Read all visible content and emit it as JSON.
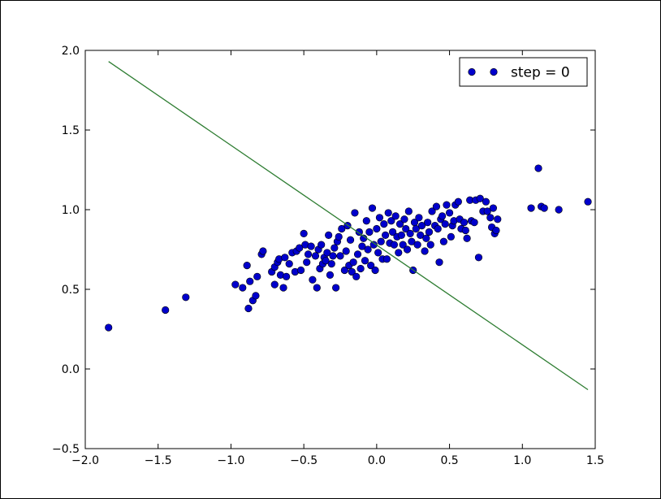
{
  "chart_data": {
    "type": "scatter",
    "title": "",
    "xlabel": "",
    "ylabel": "",
    "xlim": [
      -2.0,
      1.5
    ],
    "ylim": [
      -0.5,
      2.0
    ],
    "x_ticks": [
      -2.0,
      -1.5,
      -1.0,
      -0.5,
      0.0,
      0.5,
      1.0,
      1.5
    ],
    "x_tick_labels": [
      "−2.0",
      "−1.5",
      "−1.0",
      "−0.5",
      "0.0",
      "0.5",
      "1.0",
      "1.5"
    ],
    "y_ticks": [
      -0.5,
      0.0,
      0.5,
      1.0,
      1.5,
      2.0
    ],
    "y_tick_labels": [
      "−0.5",
      "0.0",
      "0.5",
      "1.0",
      "1.5",
      "2.0"
    ],
    "grid": false,
    "legend": {
      "placement": "top-right",
      "entries": [
        "step = 0"
      ]
    },
    "series": [
      {
        "name": "step = 0",
        "kind": "points",
        "color": "#0000cc",
        "points": [
          [
            -1.84,
            0.26
          ],
          [
            -1.45,
            0.37
          ],
          [
            -1.31,
            0.45
          ],
          [
            -0.97,
            0.53
          ],
          [
            -0.92,
            0.51
          ],
          [
            -0.89,
            0.65
          ],
          [
            -0.88,
            0.38
          ],
          [
            -0.87,
            0.55
          ],
          [
            -0.85,
            0.43
          ],
          [
            -0.83,
            0.46
          ],
          [
            -0.82,
            0.58
          ],
          [
            -0.79,
            0.72
          ],
          [
            -0.78,
            0.74
          ],
          [
            -0.72,
            0.61
          ],
          [
            -0.7,
            0.64
          ],
          [
            -0.7,
            0.53
          ],
          [
            -0.68,
            0.67
          ],
          [
            -0.67,
            0.69
          ],
          [
            -0.66,
            0.59
          ],
          [
            -0.64,
            0.51
          ],
          [
            -0.63,
            0.7
          ],
          [
            -0.62,
            0.58
          ],
          [
            -0.6,
            0.66
          ],
          [
            -0.58,
            0.73
          ],
          [
            -0.56,
            0.61
          ],
          [
            -0.55,
            0.74
          ],
          [
            -0.53,
            0.76
          ],
          [
            -0.52,
            0.62
          ],
          [
            -0.5,
            0.85
          ],
          [
            -0.49,
            0.78
          ],
          [
            -0.48,
            0.67
          ],
          [
            -0.47,
            0.72
          ],
          [
            -0.45,
            0.77
          ],
          [
            -0.44,
            0.56
          ],
          [
            -0.42,
            0.71
          ],
          [
            -0.41,
            0.51
          ],
          [
            -0.4,
            0.75
          ],
          [
            -0.39,
            0.63
          ],
          [
            -0.38,
            0.78
          ],
          [
            -0.37,
            0.66
          ],
          [
            -0.36,
            0.7
          ],
          [
            -0.35,
            0.68
          ],
          [
            -0.34,
            0.73
          ],
          [
            -0.33,
            0.84
          ],
          [
            -0.32,
            0.59
          ],
          [
            -0.31,
            0.66
          ],
          [
            -0.3,
            0.71
          ],
          [
            -0.29,
            0.76
          ],
          [
            -0.28,
            0.51
          ],
          [
            -0.27,
            0.8
          ],
          [
            -0.26,
            0.83
          ],
          [
            -0.25,
            0.71
          ],
          [
            -0.24,
            0.88
          ],
          [
            -0.22,
            0.62
          ],
          [
            -0.21,
            0.74
          ],
          [
            -0.2,
            0.9
          ],
          [
            -0.19,
            0.65
          ],
          [
            -0.18,
            0.81
          ],
          [
            -0.17,
            0.61
          ],
          [
            -0.16,
            0.67
          ],
          [
            -0.15,
            0.98
          ],
          [
            -0.14,
            0.58
          ],
          [
            -0.13,
            0.72
          ],
          [
            -0.12,
            0.86
          ],
          [
            -0.11,
            0.63
          ],
          [
            -0.1,
            0.77
          ],
          [
            -0.09,
            0.82
          ],
          [
            -0.08,
            0.68
          ],
          [
            -0.07,
            0.93
          ],
          [
            -0.06,
            0.75
          ],
          [
            -0.05,
            0.86
          ],
          [
            -0.04,
            0.65
          ],
          [
            -0.03,
            1.01
          ],
          [
            -0.02,
            0.78
          ],
          [
            -0.01,
            0.62
          ],
          [
            0.0,
            0.88
          ],
          [
            0.01,
            0.73
          ],
          [
            0.02,
            0.95
          ],
          [
            0.03,
            0.8
          ],
          [
            0.04,
            0.69
          ],
          [
            0.05,
            0.91
          ],
          [
            0.06,
            0.84
          ],
          [
            0.07,
            0.69
          ],
          [
            0.08,
            0.98
          ],
          [
            0.09,
            0.79
          ],
          [
            0.1,
            0.93
          ],
          [
            0.11,
            0.86
          ],
          [
            0.12,
            0.78
          ],
          [
            0.13,
            0.96
          ],
          [
            0.14,
            0.83
          ],
          [
            0.15,
            0.73
          ],
          [
            0.16,
            0.91
          ],
          [
            0.17,
            0.84
          ],
          [
            0.18,
            0.78
          ],
          [
            0.19,
            0.94
          ],
          [
            0.2,
            0.88
          ],
          [
            0.21,
            0.75
          ],
          [
            0.22,
            0.99
          ],
          [
            0.23,
            0.85
          ],
          [
            0.24,
            0.8
          ],
          [
            0.25,
            0.62
          ],
          [
            0.26,
            0.92
          ],
          [
            0.27,
            0.88
          ],
          [
            0.28,
            0.78
          ],
          [
            0.29,
            0.95
          ],
          [
            0.3,
            0.84
          ],
          [
            0.31,
            0.9
          ],
          [
            0.33,
            0.74
          ],
          [
            0.34,
            0.82
          ],
          [
            0.35,
            0.92
          ],
          [
            0.36,
            0.86
          ],
          [
            0.37,
            0.78
          ],
          [
            0.38,
            0.99
          ],
          [
            0.4,
            0.9
          ],
          [
            0.41,
            1.02
          ],
          [
            0.42,
            0.88
          ],
          [
            0.43,
            0.67
          ],
          [
            0.44,
            0.94
          ],
          [
            0.45,
            0.96
          ],
          [
            0.46,
            0.8
          ],
          [
            0.47,
            0.91
          ],
          [
            0.48,
            1.03
          ],
          [
            0.5,
            0.98
          ],
          [
            0.51,
            0.83
          ],
          [
            0.52,
            0.9
          ],
          [
            0.53,
            0.93
          ],
          [
            0.54,
            1.03
          ],
          [
            0.56,
            1.05
          ],
          [
            0.57,
            0.94
          ],
          [
            0.58,
            0.88
          ],
          [
            0.6,
            0.92
          ],
          [
            0.61,
            0.87
          ],
          [
            0.62,
            0.82
          ],
          [
            0.64,
            1.06
          ],
          [
            0.65,
            0.93
          ],
          [
            0.67,
            0.92
          ],
          [
            0.68,
            1.06
          ],
          [
            0.7,
            0.7
          ],
          [
            0.71,
            1.07
          ],
          [
            0.73,
            0.99
          ],
          [
            0.75,
            1.05
          ],
          [
            0.76,
            0.99
          ],
          [
            0.78,
            0.95
          ],
          [
            0.79,
            0.89
          ],
          [
            0.8,
            1.01
          ],
          [
            0.81,
            0.85
          ],
          [
            0.82,
            0.87
          ],
          [
            0.83,
            0.94
          ],
          [
            1.06,
            1.01
          ],
          [
            1.11,
            1.26
          ],
          [
            1.13,
            1.02
          ],
          [
            1.15,
            1.01
          ],
          [
            1.25,
            1.0
          ],
          [
            1.45,
            1.05
          ]
        ]
      },
      {
        "name": "",
        "kind": "line",
        "color": "#2e7d32",
        "x": [
          -1.84,
          1.45
        ],
        "y": [
          1.93,
          -0.13
        ]
      }
    ]
  }
}
